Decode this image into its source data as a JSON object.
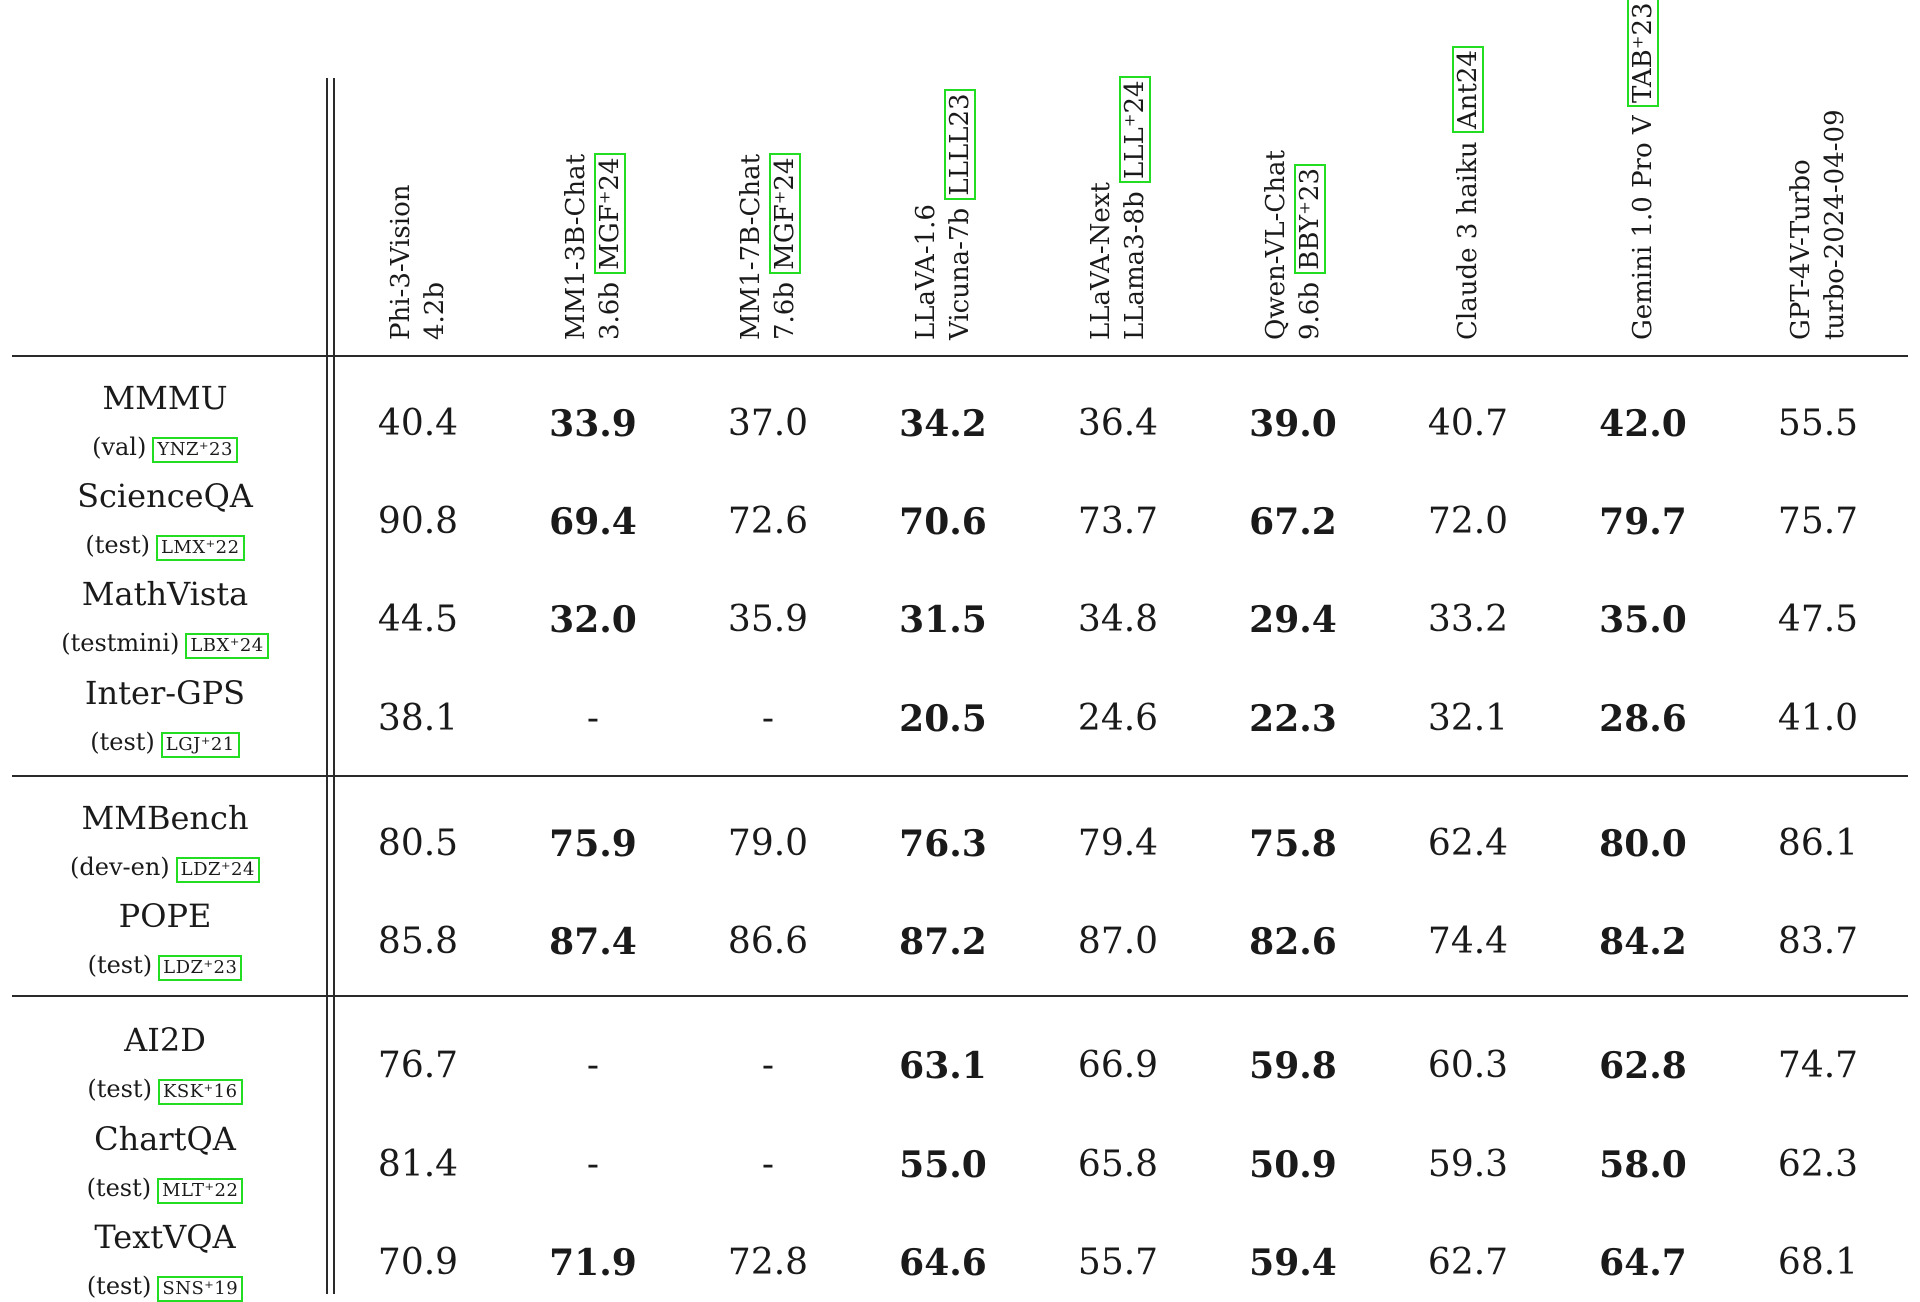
{
  "columns": [
    {
      "lines": [
        "Phi-3-Vision",
        "4.2b"
      ],
      "cite": "",
      "bold": false
    },
    {
      "lines": [
        "MM1-3B-Chat",
        "3.6b"
      ],
      "cite": "MGF⁺24",
      "bold": false
    },
    {
      "lines": [
        "MM1-7B-Chat",
        "7.6b"
      ],
      "cite": "MGF⁺24",
      "bold": false
    },
    {
      "lines": [
        "LLaVA-1.6",
        "Vicuna-7b"
      ],
      "cite": "LLLL23",
      "bold": false
    },
    {
      "lines": [
        "LLaVA-Next",
        "LLama3-8b"
      ],
      "cite": "LLL⁺24",
      "bold": true
    },
    {
      "lines": [
        "Qwen-VL-Chat",
        "9.6b"
      ],
      "cite": "BBY⁺23",
      "bold": false
    },
    {
      "lines": [
        "Claude 3 haiku"
      ],
      "cite": "Ant24",
      "bold": false
    },
    {
      "lines": [
        "Gemini 1.0 Pro V"
      ],
      "cite": "TAB⁺23",
      "bold": false
    },
    {
      "lines": [
        "GPT-4V-Turbo",
        "turbo-2024-04-09"
      ],
      "cite": "",
      "bold": true
    }
  ],
  "rows": [
    {
      "name": "MMMU",
      "split": "(val)",
      "cite": "YNZ⁺23",
      "values": [
        "40.4",
        "33.9",
        "37.0",
        "34.2",
        "36.4",
        "39.0",
        "40.7",
        "42.0",
        "55.5"
      ],
      "bold": [
        false,
        true,
        false,
        true,
        false,
        true,
        false,
        true,
        false
      ]
    },
    {
      "name": "ScienceQA",
      "split": "(test)",
      "cite": "LMX⁺22",
      "values": [
        "90.8",
        "69.4",
        "72.6",
        "70.6",
        "73.7",
        "67.2",
        "72.0",
        "79.7",
        "75.7"
      ],
      "bold": [
        false,
        true,
        false,
        true,
        false,
        true,
        false,
        true,
        false
      ]
    },
    {
      "name": "MathVista",
      "split": "(testmini)",
      "cite": "LBX⁺24",
      "values": [
        "44.5",
        "32.0",
        "35.9",
        "31.5",
        "34.8",
        "29.4",
        "33.2",
        "35.0",
        "47.5"
      ],
      "bold": [
        false,
        true,
        false,
        true,
        false,
        true,
        false,
        true,
        false
      ]
    },
    {
      "name": "Inter-GPS",
      "split": "(test)",
      "cite": "LGJ⁺21",
      "values": [
        "38.1",
        "-",
        "-",
        "20.5",
        "24.6",
        "22.3",
        "32.1",
        "28.6",
        "41.0"
      ],
      "bold": [
        false,
        false,
        false,
        true,
        false,
        true,
        false,
        true,
        false
      ]
    },
    {
      "name": "MMBench",
      "split": "(dev-en)",
      "cite": "LDZ⁺24",
      "values": [
        "80.5",
        "75.9",
        "79.0",
        "76.3",
        "79.4",
        "75.8",
        "62.4",
        "80.0",
        "86.1"
      ],
      "bold": [
        false,
        true,
        false,
        true,
        false,
        true,
        false,
        true,
        false
      ]
    },
    {
      "name": "POPE",
      "split": "(test)",
      "cite": "LDZ⁺23",
      "values": [
        "85.8",
        "87.4",
        "86.6",
        "87.2",
        "87.0",
        "82.6",
        "74.4",
        "84.2",
        "83.7"
      ],
      "bold": [
        false,
        true,
        false,
        true,
        false,
        true,
        false,
        true,
        false
      ]
    },
    {
      "name": "AI2D",
      "split": "(test)",
      "cite": "KSK⁺16",
      "values": [
        "76.7",
        "-",
        "-",
        "63.1",
        "66.9",
        "59.8",
        "60.3",
        "62.8",
        "74.7"
      ],
      "bold": [
        false,
        false,
        false,
        true,
        false,
        true,
        false,
        true,
        false
      ]
    },
    {
      "name": "ChartQA",
      "split": "(test)",
      "cite": "MLT⁺22",
      "values": [
        "81.4",
        "-",
        "-",
        "55.0",
        "65.8",
        "50.9",
        "59.3",
        "58.0",
        "62.3"
      ],
      "bold": [
        false,
        false,
        false,
        true,
        false,
        true,
        false,
        true,
        false
      ]
    },
    {
      "name": "TextVQA",
      "split": "(test)",
      "cite": "SNS⁺19",
      "values": [
        "70.9",
        "71.9",
        "72.8",
        "64.6",
        "55.7",
        "59.4",
        "62.7",
        "64.7",
        "68.1"
      ],
      "bold": [
        false,
        true,
        false,
        true,
        false,
        true,
        false,
        true,
        false
      ]
    }
  ]
}
